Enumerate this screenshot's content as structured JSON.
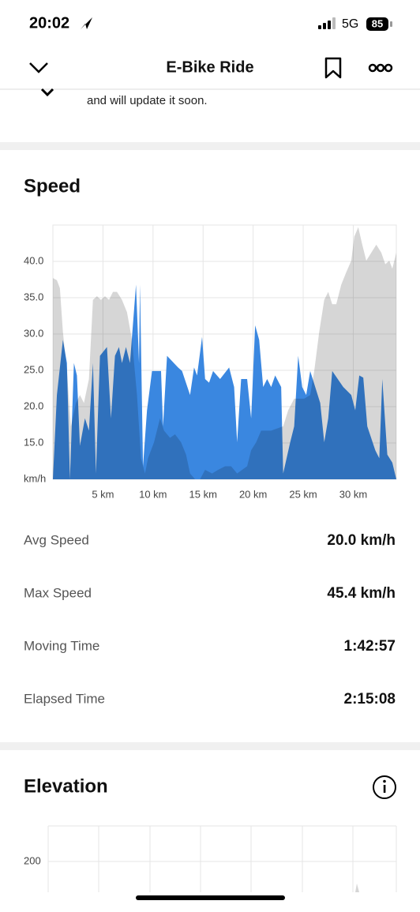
{
  "status_bar": {
    "time": "20:02",
    "network": "5G",
    "battery": "85"
  },
  "header": {
    "title": "E-Bike Ride"
  },
  "notice": {
    "text": "and will update it soon."
  },
  "speed": {
    "title": "Speed",
    "chart": {
      "type": "area",
      "xlim": [
        0,
        34.3
      ],
      "ylim": [
        10,
        45
      ],
      "xticks": [
        {
          "value": 5,
          "label": "5 km"
        },
        {
          "value": 10,
          "label": "10 km"
        },
        {
          "value": 15,
          "label": "15 km"
        },
        {
          "value": 20,
          "label": "20 km"
        },
        {
          "value": 25,
          "label": "25 km"
        },
        {
          "value": 30,
          "label": "30 km"
        }
      ],
      "yticks": [
        {
          "value": 10,
          "label": "km/h"
        },
        {
          "value": 15,
          "label": "15.0"
        },
        {
          "value": 20,
          "label": "20.0"
        },
        {
          "value": 25,
          "label": "25.0"
        },
        {
          "value": 30,
          "label": "30.0"
        },
        {
          "value": 35,
          "label": "35.0"
        },
        {
          "value": 40,
          "label": "40.0"
        }
      ],
      "grid": true,
      "series": [
        {
          "color": "#3a87e0",
          "x": [
            0.0,
            0.4,
            1.0,
            1.4,
            1.7,
            2.1,
            2.4,
            2.7,
            3.2,
            3.6,
            4.0,
            4.3,
            4.7,
            5.4,
            5.8,
            6.2,
            6.6,
            6.9,
            7.3,
            7.7,
            8.3,
            8.6,
            8.7,
            9.0,
            9.4,
            9.9,
            10.8,
            11.0,
            11.4,
            12.5,
            12.9,
            13.7,
            14.1,
            14.4,
            14.9,
            15.2,
            15.6,
            16.0,
            16.7,
            17.6,
            18.1,
            18.4,
            18.8,
            19.4,
            19.8,
            20.2,
            20.6,
            21.0,
            21.4,
            21.8,
            22.2,
            22.8,
            23.0,
            23.7,
            24.1,
            24.5,
            24.9,
            25.3,
            25.7,
            26.7,
            27.1,
            27.5,
            27.9,
            29.0,
            29.8,
            30.2,
            30.6,
            31.0,
            31.4,
            32.2,
            32.6,
            32.9,
            33.4,
            33.9,
            34.3
          ],
          "values": [
            10,
            21.6,
            29.2,
            26,
            10,
            26,
            24.3,
            14.6,
            18.4,
            16.7,
            26,
            10.8,
            27,
            28.2,
            18.4,
            27,
            28.2,
            26,
            28.2,
            26,
            36.8,
            26,
            36.8,
            11.8,
            19.5,
            24.9,
            24.9,
            17.3,
            27,
            25.4,
            24.9,
            21.6,
            25.4,
            24.3,
            29.6,
            23.8,
            23.3,
            24.9,
            23.8,
            25.4,
            22.7,
            15.1,
            23.8,
            23.8,
            18.4,
            31.2,
            29.2,
            22.7,
            23.8,
            22.7,
            24.3,
            22.7,
            10.8,
            15.1,
            17.3,
            27,
            22.7,
            21.6,
            24.9,
            20.5,
            15.1,
            18.4,
            24.9,
            22.7,
            21.6,
            19.5,
            24.3,
            24,
            17.3,
            14,
            12.9,
            23.8,
            13.4,
            12.3,
            10
          ]
        },
        {
          "color": "#000000",
          "x": [
            0.0,
            0.4,
            0.7,
            1.0,
            1.4,
            1.8,
            2.3,
            2.7,
            3.1,
            3.6,
            4.0,
            4.4,
            4.8,
            5.2,
            5.6,
            6.0,
            6.4,
            6.9,
            7.4,
            7.9,
            8.4,
            8.8,
            9.2,
            9.5,
            10.1,
            10.7,
            11.1,
            11.7,
            12.2,
            12.8,
            13.3,
            13.7,
            14.2,
            14.7,
            15.2,
            15.9,
            16.5,
            17.2,
            17.8,
            18.4,
            18.9,
            19.4,
            19.8,
            20.3,
            20.8,
            21.8,
            23.0,
            23.5,
            24.1,
            25.1,
            25.7,
            26.1,
            26.6,
            27.1,
            27.5,
            27.9,
            28.3,
            28.8,
            29.3,
            29.8,
            30.1,
            30.5,
            30.9,
            31.3,
            31.8,
            32.3,
            32.8,
            33.2,
            33.6,
            33.9,
            34.3
          ],
          "values": [
            37.7,
            37.4,
            36.3,
            30.3,
            24.9,
            17.3,
            20.5,
            21.6,
            20.5,
            23.8,
            34.7,
            35.2,
            34.7,
            35.2,
            34.7,
            35.8,
            35.8,
            34.7,
            33,
            29.2,
            21.6,
            12.9,
            10.8,
            12.9,
            15.1,
            18.4,
            16.7,
            15.7,
            16.2,
            15.1,
            13.4,
            10.8,
            10,
            10,
            11.3,
            10.8,
            11.3,
            11.8,
            11.8,
            10.8,
            11.3,
            11.8,
            14,
            15.1,
            16.7,
            16.7,
            17.3,
            19.5,
            21.1,
            21.1,
            21.6,
            24.9,
            30.3,
            34.7,
            35.8,
            34.1,
            34.1,
            36.8,
            38.5,
            40.1,
            43.4,
            44.7,
            42.3,
            40.1,
            41.2,
            42.3,
            41.2,
            39.6,
            40.1,
            39,
            41.2
          ]
        }
      ]
    },
    "stats": [
      {
        "label": "Avg Speed",
        "value": "20.0 km/h"
      },
      {
        "label": "Max Speed",
        "value": "45.4 km/h"
      },
      {
        "label": "Moving Time",
        "value": "1:42:57"
      },
      {
        "label": "Elapsed Time",
        "value": "2:15:08"
      }
    ]
  },
  "elevation": {
    "title": "Elevation",
    "tick": "200"
  }
}
